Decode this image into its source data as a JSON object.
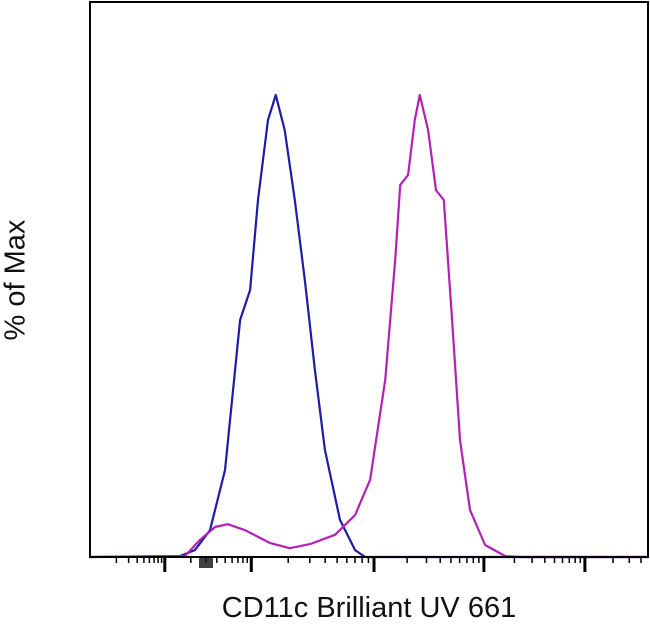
{
  "chart_data": {
    "type": "line",
    "title": "",
    "xlabel": "CD11c Brilliant UV 661",
    "ylabel": "% of Max",
    "xscale": "log (biexponential), no tick labels",
    "xlim": [
      0,
      1000
    ],
    "ylim": [
      0,
      100
    ],
    "grid": false,
    "legend": "none",
    "major_ticks": [
      134,
      289,
      509,
      706,
      887
    ],
    "series": [
      {
        "color": "#1c1ca8",
        "x": [
          0,
          161,
          188,
          215,
          242,
          269,
          287,
          301,
          319,
          333,
          349,
          367,
          385,
          403,
          421,
          448,
          475,
          493,
          1000
        ],
        "y": [
          0,
          0.2,
          1.5,
          5.8,
          18.8,
          51.3,
          57.8,
          77.3,
          94.6,
          100,
          92.4,
          77.3,
          60,
          40.5,
          23.2,
          8,
          1.5,
          0,
          0
        ]
      },
      {
        "color": "#b320b3",
        "x": [
          0,
          170,
          197,
          224,
          247,
          278,
          323,
          358,
          394,
          439,
          475,
          502,
          529,
          547,
          556,
          570,
          582,
          591,
          606,
          620,
          634,
          649,
          663,
          681,
          708,
          744,
          771,
          1000
        ],
        "y": [
          0,
          0.2,
          3.7,
          6.5,
          7.1,
          5.8,
          3.0,
          1.9,
          2.8,
          4.8,
          9.1,
          16.7,
          38.3,
          64.3,
          80.5,
          82.7,
          94.6,
          100,
          92.4,
          79.4,
          77.3,
          51.3,
          25.3,
          10.2,
          2.6,
          0.2,
          0,
          0
        ]
      }
    ]
  }
}
